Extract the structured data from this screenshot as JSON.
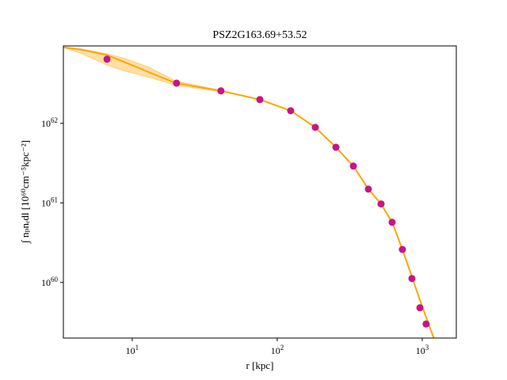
{
  "chart_data": {
    "type": "scatter",
    "title": "PSZ2G163.69+53.52",
    "x_label": "r [kpc]",
    "y_label": "∫ nₚnₑdl [10⁶⁰cm⁻⁵kpc⁻²]",
    "xscale": "log",
    "yscale": "log",
    "xlim": [
      3.35,
      1718
    ],
    "ylim": [
      2e+59,
      9.4e+62
    ],
    "xticks": [
      {
        "value": 10,
        "label": "10^1"
      },
      {
        "value": 100,
        "label": "10^2"
      },
      {
        "value": 1000,
        "label": "10^3"
      }
    ],
    "yticks": [
      {
        "value": 1e+60,
        "label": "10^60"
      },
      {
        "value": 1e+61,
        "label": "10^61"
      },
      {
        "value": 1e+62,
        "label": "10^62"
      }
    ],
    "model": {
      "color": "#ffa500",
      "x": [
        3.35,
        4.5,
        6.7,
        9,
        13,
        20,
        41,
        76,
        124,
        183,
        254,
        335,
        425,
        520,
        620,
        730,
        850,
        980,
        1100,
        1200
      ],
      "values": [
        9e+62,
        8.4e+62,
        7.2e+62,
        5.8e+62,
        4.4e+62,
        3.2e+62,
        2.56e+62,
        1.99e+62,
        1.44e+62,
        8.9e+61,
        5e+61,
        2.9e+61,
        1.49e+61,
        9.7e+60,
        5.7e+60,
        2.6e+60,
        1.17e+60,
        5.5e+59,
        3.1e+59,
        2e+59
      ]
    },
    "band": {
      "color": "#ffd27f",
      "x": [
        3.35,
        4.5,
        6.7,
        9,
        13,
        20,
        41
      ],
      "lower": [
        9e+62,
        7.5e+62,
        5.4e+62,
        4.5e+62,
        3.8e+62,
        3e+62,
        2.5e+62
      ],
      "upper": [
        9.2e+62,
        8.6e+62,
        7.5e+62,
        6.5e+62,
        5.1e+62,
        3.4e+62,
        2.6e+62
      ]
    },
    "points": {
      "color": "#c71585",
      "x": [
        6.7,
        20.2,
        40.9,
        75.9,
        123.8,
        183,
        254,
        335,
        425,
        520,
        620,
        730,
        849,
        964,
        1064
      ],
      "values": [
        6.4e+62,
        3.2e+62,
        2.56e+62,
        1.99e+62,
        1.44e+62,
        8.9e+61,
        5e+61,
        2.9e+61,
        1.49e+61,
        9.7e+60,
        5.7e+60,
        2.6e+60,
        1.12e+60,
        4.8e+59,
        3e+59
      ]
    }
  }
}
